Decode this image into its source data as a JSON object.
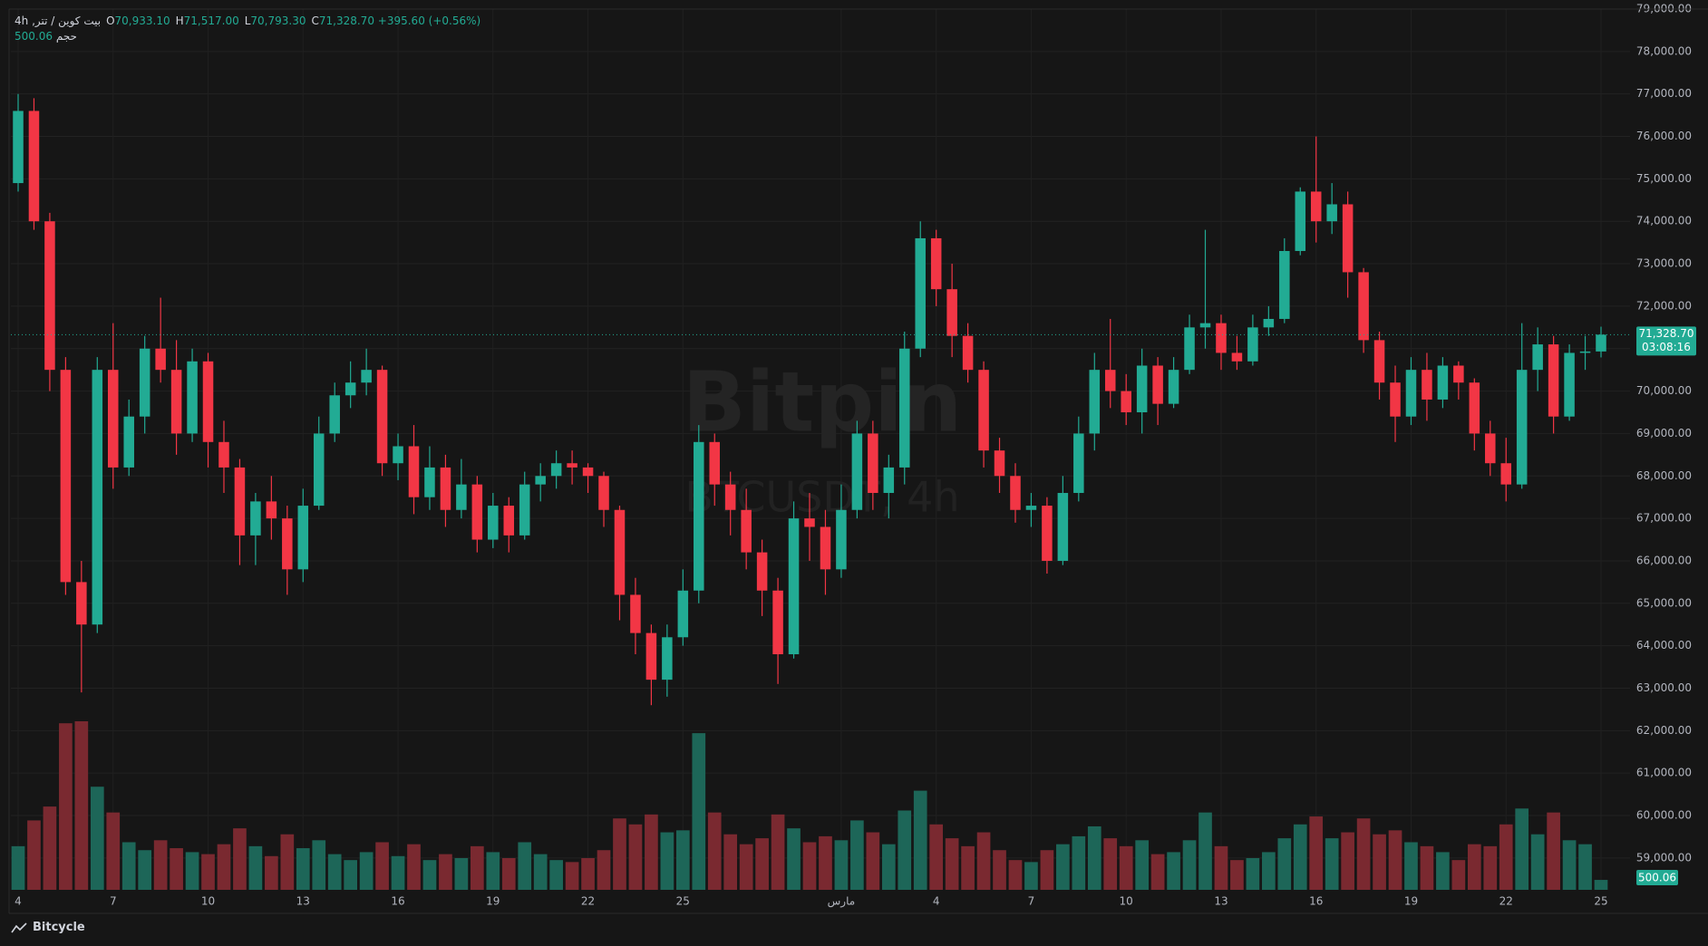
{
  "chart_data": {
    "type": "candlestick",
    "symbol": "بیت کوین / تتر, 4h",
    "watermark": "Bitpin",
    "watermark_sub": "BTCUSDT, 4h",
    "legend_items": [
      {
        "key": "O",
        "value": "70,933.10"
      },
      {
        "key": "H",
        "value": "71,517.00"
      },
      {
        "key": "L",
        "value": "70,793.30"
      },
      {
        "key": "C",
        "value": "71,328.70"
      }
    ],
    "change": "+395.60 (+0.56%)",
    "volume_label": "حجم",
    "last_price_label": "71,328.70",
    "countdown": "03:08:16",
    "brand": "Bitcycle",
    "up_color": "#22ab94",
    "down_color": "#f23645",
    "volume_up_color": "#1d6658",
    "volume_down_color": "#7a2930",
    "grid": true,
    "ylim": [
      58250,
      79000
    ],
    "yticks": [
      {
        "value": 59000,
        "label": "59,000.00"
      },
      {
        "value": 60000,
        "label": "60,000.00"
      },
      {
        "value": 61000,
        "label": "61,000.00"
      },
      {
        "value": 62000,
        "label": "62,000.00"
      },
      {
        "value": 63000,
        "label": "63,000.00"
      },
      {
        "value": 64000,
        "label": "64,000.00"
      },
      {
        "value": 65000,
        "label": "65,000.00"
      },
      {
        "value": 66000,
        "label": "66,000.00"
      },
      {
        "value": 67000,
        "label": "67,000.00"
      },
      {
        "value": 68000,
        "label": "68,000.00"
      },
      {
        "value": 69000,
        "label": "69,000.00"
      },
      {
        "value": 70000,
        "label": "70,000.00"
      },
      {
        "value": 71000,
        "label": "71,000.00"
      },
      {
        "value": 72000,
        "label": "72,000.00"
      },
      {
        "value": 73000,
        "label": "73,000.00"
      },
      {
        "value": 74000,
        "label": "74,000.00"
      },
      {
        "value": 75000,
        "label": "75,000.00"
      },
      {
        "value": 76000,
        "label": "76,000.00"
      },
      {
        "value": 77000,
        "label": "77,000.00"
      },
      {
        "value": 78000,
        "label": "78,000.00"
      },
      {
        "value": 79000,
        "label": "79,000.00"
      }
    ],
    "categories": [
      "4",
      null,
      null,
      null,
      null,
      null,
      "7",
      null,
      null,
      null,
      null,
      null,
      "10",
      null,
      null,
      null,
      null,
      null,
      "13",
      null,
      null,
      null,
      null,
      null,
      "16",
      null,
      null,
      null,
      null,
      null,
      "19",
      null,
      null,
      null,
      null,
      null,
      "22",
      null,
      null,
      null,
      null,
      null,
      "25",
      null,
      null,
      null,
      null,
      null,
      null,
      null,
      null,
      null,
      "مارس",
      null,
      null,
      null,
      null,
      null,
      "4",
      null,
      null,
      null,
      null,
      null,
      "7",
      null,
      null,
      null,
      null,
      null,
      "10",
      null,
      null,
      null,
      null,
      null,
      "13",
      null,
      null,
      null,
      null,
      null,
      "16",
      null,
      null,
      null,
      null,
      null,
      "19",
      null,
      null,
      null,
      null,
      null,
      "22",
      null,
      null,
      null,
      null,
      null,
      "25"
    ],
    "open": [
      74900,
      76600,
      74000,
      70500,
      65500,
      64500,
      70500,
      68200,
      69400,
      71000,
      70500,
      69000,
      70700,
      68800,
      68200,
      66600,
      67400,
      67000,
      65800,
      67300,
      69000,
      69900,
      70200,
      70500,
      68300,
      68700,
      67500,
      68200,
      67200,
      67800,
      66500,
      67300,
      66600,
      67800,
      68000,
      68300,
      68200,
      68000,
      67200,
      65200,
      64300,
      63200,
      64200,
      65300,
      68800,
      67800,
      67200,
      66200,
      65300,
      63800,
      67000,
      66800,
      65800,
      67200,
      69000,
      67600,
      68200,
      71000,
      73600,
      72400,
      71300,
      70500,
      68600,
      68000,
      67200,
      67300,
      66000,
      67600,
      69000,
      70500,
      70000,
      69500,
      70600,
      69700,
      70500,
      71500,
      71600,
      70900,
      70700,
      71500,
      71700,
      73300,
      74700,
      74000,
      74400,
      72800,
      71200,
      70200,
      69400,
      70500,
      69800,
      70600,
      70200,
      69000,
      68300,
      67800,
      70500,
      71100,
      69400,
      70900,
      70933.1
    ],
    "high": [
      77000,
      76900,
      74200,
      70800,
      66000,
      70800,
      71600,
      69800,
      71300,
      72200,
      71200,
      71000,
      70900,
      69300,
      68400,
      67600,
      68000,
      67300,
      67700,
      69400,
      70200,
      70700,
      71000,
      70600,
      69000,
      69200,
      68700,
      68500,
      68400,
      68000,
      67600,
      67500,
      68100,
      68300,
      68600,
      68600,
      68300,
      68100,
      67300,
      65600,
      64500,
      64500,
      65800,
      69200,
      69000,
      68100,
      67700,
      66500,
      65600,
      67400,
      67600,
      67200,
      67800,
      69300,
      69300,
      68500,
      71400,
      74000,
      73800,
      73000,
      71600,
      70700,
      68900,
      68300,
      67600,
      67500,
      68000,
      69400,
      70900,
      71700,
      70400,
      71000,
      70800,
      70800,
      71800,
      73800,
      71800,
      71300,
      71800,
      72000,
      73600,
      74800,
      76000,
      74900,
      74700,
      72900,
      71400,
      70600,
      70800,
      70900,
      70800,
      70700,
      70300,
      69300,
      68900,
      71600,
      71500,
      71300,
      71100,
      71300,
      71517
    ],
    "low": [
      74700,
      73800,
      70000,
      65200,
      62900,
      64300,
      67700,
      68000,
      69000,
      70200,
      68500,
      68800,
      68200,
      67600,
      65900,
      65900,
      66500,
      65200,
      65500,
      67200,
      68800,
      69600,
      69900,
      68000,
      67900,
      67100,
      67200,
      66800,
      67000,
      66200,
      66300,
      66200,
      66500,
      67400,
      67700,
      67800,
      67600,
      66800,
      64600,
      63800,
      62600,
      62800,
      64000,
      65000,
      67300,
      66600,
      65800,
      64700,
      63100,
      63700,
      66000,
      65200,
      65600,
      67000,
      67200,
      67000,
      67800,
      70800,
      72000,
      70800,
      70200,
      68200,
      67600,
      66900,
      66800,
      65700,
      65900,
      67400,
      68600,
      69600,
      69200,
      69000,
      69200,
      69600,
      70400,
      71000,
      70500,
      70500,
      70600,
      71300,
      71600,
      73200,
      73500,
      73700,
      72200,
      70900,
      69800,
      68800,
      69200,
      69300,
      69600,
      69800,
      68600,
      68000,
      67400,
      67700,
      70000,
      69000,
      69300,
      70500,
      70793.3
    ],
    "close": [
      76600,
      74000,
      70500,
      65500,
      64500,
      70500,
      68200,
      69400,
      71000,
      70500,
      69000,
      70700,
      68800,
      68200,
      66600,
      67400,
      67000,
      65800,
      67300,
      69000,
      69900,
      70200,
      70500,
      68300,
      68700,
      67500,
      68200,
      67200,
      67800,
      66500,
      67300,
      66600,
      67800,
      68000,
      68300,
      68200,
      68000,
      67200,
      65200,
      64300,
      63200,
      64200,
      65300,
      68800,
      67800,
      67200,
      66200,
      65300,
      63800,
      67000,
      66800,
      65800,
      67200,
      69000,
      67600,
      68200,
      71000,
      73600,
      72400,
      71300,
      70500,
      68600,
      68000,
      67200,
      67300,
      66000,
      67600,
      69000,
      70500,
      70000,
      69500,
      70600,
      69700,
      70500,
      71500,
      71600,
      70900,
      70700,
      71500,
      71700,
      73300,
      74700,
      74000,
      74400,
      72800,
      71200,
      70200,
      69400,
      70500,
      69800,
      70600,
      70200,
      69000,
      68300,
      67800,
      70500,
      71100,
      69400,
      70900,
      70933.1,
      71328.7
    ],
    "volume": [
      2200,
      3500,
      4200,
      8400,
      8500,
      5200,
      3900,
      2400,
      2000,
      2500,
      2100,
      1900,
      1800,
      2300,
      3100,
      2200,
      1700,
      2800,
      2100,
      2500,
      1800,
      1500,
      1900,
      2400,
      1700,
      2300,
      1500,
      1800,
      1600,
      2200,
      1900,
      1600,
      2400,
      1800,
      1500,
      1400,
      1600,
      2000,
      3600,
      3300,
      3800,
      2900,
      3000,
      7900,
      3900,
      2800,
      2300,
      2600,
      3800,
      3100,
      2400,
      2700,
      2500,
      3500,
      2900,
      2300,
      4000,
      5000,
      3300,
      2600,
      2200,
      2900,
      2000,
      1500,
      1400,
      2000,
      2300,
      2700,
      3200,
      2600,
      2200,
      2500,
      1800,
      1900,
      2500,
      3900,
      2200,
      1500,
      1600,
      1900,
      2600,
      3300,
      3700,
      2600,
      2900,
      3600,
      2800,
      3000,
      2400,
      2200,
      1900,
      1500,
      2300,
      2200,
      3300,
      4100,
      2800,
      3900,
      2500,
      2300,
      500.06
    ]
  }
}
